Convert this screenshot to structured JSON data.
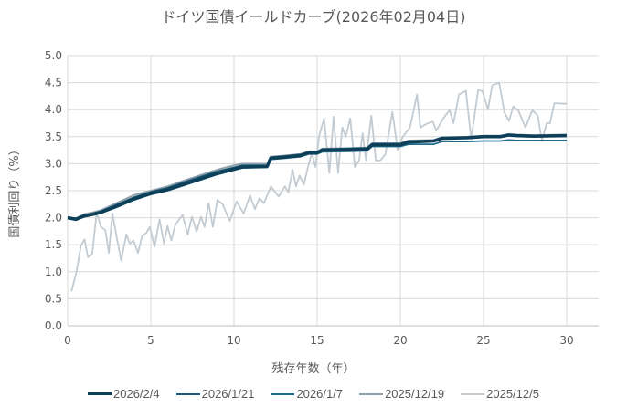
{
  "chart_data": {
    "type": "line",
    "title": "ドイツ国債イールドカーブ(2026年02月04日)",
    "xlabel": "残存年数（年）",
    "ylabel": "国債利回り（%）",
    "xlim": [
      0,
      32
    ],
    "ylim": [
      0,
      5
    ],
    "xticks": [
      "0",
      "5",
      "10",
      "15",
      "20",
      "25",
      "30"
    ],
    "yticks": [
      "0.0",
      "0.5",
      "1.0",
      "1.5",
      "2.0",
      "2.5",
      "3.0",
      "3.5",
      "4.0",
      "4.5",
      "5.0"
    ],
    "grid": true,
    "legend_position": "bottom",
    "series": [
      {
        "name": "2026/2/4",
        "color": "#0e3f58",
        "width": 3.5,
        "x": [
          0,
          0.5,
          1,
          1.5,
          2,
          3,
          4,
          5,
          6,
          7,
          8,
          9,
          10,
          10.5,
          12,
          12.2,
          13,
          14,
          14.5,
          15,
          15.3,
          17,
          18,
          18.3,
          20,
          20.5,
          22,
          22.5,
          24,
          25,
          26,
          26.5,
          27,
          28,
          30
        ],
        "y": [
          2.0,
          1.97,
          2.03,
          2.06,
          2.1,
          2.22,
          2.35,
          2.45,
          2.52,
          2.62,
          2.72,
          2.82,
          2.9,
          2.94,
          2.95,
          3.1,
          3.12,
          3.15,
          3.2,
          3.2,
          3.25,
          3.26,
          3.27,
          3.35,
          3.35,
          3.4,
          3.42,
          3.47,
          3.48,
          3.5,
          3.5,
          3.53,
          3.52,
          3.51,
          3.52
        ]
      },
      {
        "name": "2026/1/21",
        "color": "#1b5a76",
        "width": 1.8,
        "x": [
          0,
          0.5,
          1,
          1.5,
          2,
          3,
          4,
          5,
          6,
          7,
          8,
          9,
          10,
          10.5,
          12,
          12.2,
          13,
          14,
          14.5,
          15,
          15.3,
          17,
          18,
          18.3,
          20,
          20.5,
          22,
          22.5,
          24,
          25,
          26,
          26.5,
          27,
          28,
          30
        ],
        "y": [
          2.01,
          1.99,
          2.05,
          2.08,
          2.12,
          2.25,
          2.38,
          2.48,
          2.55,
          2.66,
          2.76,
          2.86,
          2.93,
          2.97,
          2.97,
          3.12,
          3.14,
          3.17,
          3.22,
          3.22,
          3.27,
          3.28,
          3.29,
          3.37,
          3.37,
          3.42,
          3.43,
          3.48,
          3.49,
          3.51,
          3.51,
          3.54,
          3.53,
          3.52,
          3.53
        ]
      },
      {
        "name": "2026/1/7",
        "color": "#1f6b8c",
        "width": 1.8,
        "x": [
          0,
          0.5,
          1,
          1.5,
          2,
          3,
          4,
          5,
          6,
          7,
          8,
          9,
          10,
          10.5,
          12,
          12.2,
          13,
          14,
          14.5,
          15,
          15.3,
          17,
          18,
          18.3,
          20,
          20.5,
          22,
          22.5,
          24,
          25,
          26,
          26.5,
          27,
          28,
          30
        ],
        "y": [
          1.99,
          1.96,
          2.02,
          2.05,
          2.09,
          2.2,
          2.33,
          2.43,
          2.5,
          2.6,
          2.7,
          2.8,
          2.88,
          2.92,
          2.93,
          3.08,
          3.1,
          3.13,
          3.18,
          3.18,
          3.22,
          3.23,
          3.24,
          3.32,
          3.32,
          3.36,
          3.36,
          3.41,
          3.41,
          3.42,
          3.42,
          3.44,
          3.43,
          3.43,
          3.43
        ]
      },
      {
        "name": "2025/12/19",
        "color": "#8e9faa",
        "width": 1.8,
        "x": [
          0,
          0.5,
          1,
          1.5,
          2,
          3,
          4,
          5,
          6,
          7,
          8,
          9,
          10,
          10.5,
          12,
          12.2,
          13,
          14,
          14.5,
          15,
          15.3,
          17,
          18,
          18.3,
          20,
          20.5,
          22,
          22.5,
          24,
          25,
          26,
          26.5,
          27,
          28,
          30
        ],
        "y": [
          2.0,
          1.99,
          2.07,
          2.1,
          2.14,
          2.28,
          2.42,
          2.5,
          2.58,
          2.69,
          2.79,
          2.89,
          2.97,
          3.0,
          3.0,
          3.13,
          3.15,
          3.18,
          3.23,
          3.23,
          3.28,
          3.29,
          3.3,
          3.38,
          3.38,
          3.43,
          3.44,
          3.49,
          3.5,
          3.52,
          3.52,
          3.55,
          3.54,
          3.53,
          3.54
        ]
      },
      {
        "name": "2025/12/5",
        "color": "#c3cbd2",
        "width": 1.8,
        "x": [
          0.23,
          0.53,
          0.8,
          1.01,
          1.22,
          1.47,
          1.75,
          2.0,
          2.27,
          2.48,
          2.69,
          2.97,
          3.22,
          3.53,
          3.74,
          3.95,
          4.23,
          4.48,
          4.73,
          4.94,
          5.22,
          5.53,
          5.79,
          6.0,
          6.23,
          6.49,
          6.91,
          7.22,
          7.47,
          7.75,
          8.02,
          8.23,
          8.48,
          8.73,
          9.0,
          9.32,
          9.74,
          10.16,
          10.58,
          10.96,
          11.26,
          11.53,
          11.8,
          12.22,
          12.68,
          13.06,
          13.27,
          13.52,
          13.73,
          13.94,
          14.2,
          14.41,
          14.68,
          14.9,
          15.11,
          15.42,
          15.73,
          15.99,
          16.26,
          16.51,
          16.72,
          16.99,
          17.27,
          17.52,
          17.73,
          17.94,
          18.26,
          18.53,
          18.79,
          19.1,
          19.52,
          19.84,
          20.15,
          20.58,
          21.0,
          21.21,
          21.53,
          21.95,
          22.16,
          22.58,
          22.96,
          23.2,
          23.52,
          23.94,
          24.26,
          24.68,
          24.94,
          25.27,
          25.52,
          25.94,
          26.26,
          26.53,
          26.79,
          27.1,
          27.52,
          27.94,
          28.26,
          28.51,
          28.79,
          29.0,
          29.26,
          30
        ],
        "y": [
          0.64,
          0.99,
          1.49,
          1.6,
          1.27,
          1.32,
          2.11,
          1.83,
          1.77,
          1.35,
          2.08,
          1.6,
          1.21,
          1.69,
          1.52,
          1.58,
          1.35,
          1.66,
          1.72,
          1.83,
          1.46,
          1.97,
          1.52,
          1.85,
          1.58,
          1.88,
          2.05,
          1.69,
          2.02,
          1.74,
          2.02,
          1.83,
          2.27,
          1.83,
          2.33,
          2.25,
          1.94,
          2.3,
          2.08,
          2.41,
          2.16,
          2.36,
          2.27,
          2.58,
          2.39,
          2.58,
          2.47,
          2.89,
          2.58,
          2.78,
          2.61,
          2.89,
          3.2,
          2.94,
          3.5,
          3.84,
          2.83,
          3.87,
          2.83,
          3.67,
          3.5,
          3.84,
          2.94,
          3.06,
          3.56,
          3.06,
          3.89,
          3.06,
          3.06,
          3.17,
          3.96,
          3.25,
          3.5,
          3.67,
          4.28,
          3.67,
          3.73,
          3.78,
          3.61,
          3.84,
          3.99,
          3.75,
          4.28,
          4.35,
          3.45,
          4.37,
          4.34,
          4.0,
          4.45,
          4.5,
          3.95,
          3.79,
          4.06,
          3.98,
          3.67,
          3.99,
          3.89,
          3.42,
          3.75,
          3.75,
          4.12,
          4.11
        ]
      }
    ]
  }
}
